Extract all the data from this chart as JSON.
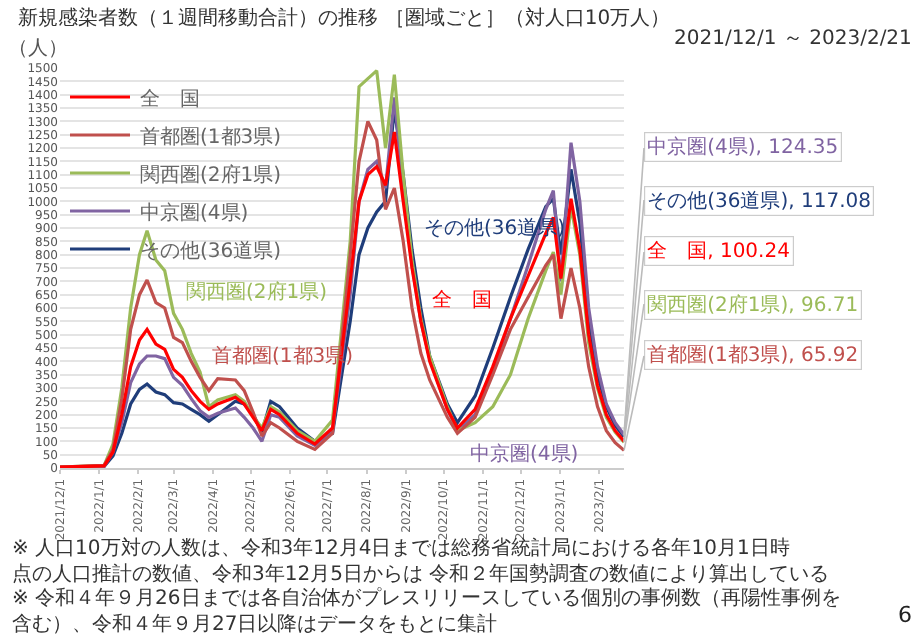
{
  "chart_data": {
    "type": "line",
    "title": "新規感染者数（１週間移動合計）の推移 ［圏域ごと］（対人口10万人）",
    "subtitle": "2021/12/1 ～ 2023/2/21",
    "ylabel": "（人）",
    "x": [
      "2021-12-01",
      "2022-01-05",
      "2022-01-12",
      "2022-01-19",
      "2022-01-26",
      "2022-02-02",
      "2022-02-08",
      "2022-02-15",
      "2022-02-22",
      "2022-03-01",
      "2022-03-08",
      "2022-03-15",
      "2022-03-22",
      "2022-03-29",
      "2022-04-05",
      "2022-04-19",
      "2022-04-26",
      "2022-05-03",
      "2022-05-10",
      "2022-05-17",
      "2022-05-24",
      "2022-06-07",
      "2022-06-21",
      "2022-07-05",
      "2022-07-19",
      "2022-07-26",
      "2022-08-02",
      "2022-08-09",
      "2022-08-16",
      "2022-08-23",
      "2022-08-30",
      "2022-09-06",
      "2022-09-13",
      "2022-09-20",
      "2022-10-04",
      "2022-10-12",
      "2022-10-26",
      "2022-11-09",
      "2022-11-23",
      "2022-12-07",
      "2022-12-21",
      "2022-12-27",
      "2023-01-02",
      "2023-01-10",
      "2023-01-17",
      "2023-01-24",
      "2023-01-31",
      "2023-02-07",
      "2023-02-14",
      "2023-02-21"
    ],
    "series": [
      {
        "name": "全　国",
        "color": "#ff0000",
        "values": [
          3,
          8,
          60,
          200,
          380,
          480,
          520,
          465,
          445,
          370,
          340,
          290,
          250,
          220,
          240,
          265,
          240,
          190,
          140,
          220,
          200,
          130,
          90,
          150,
          700,
          1000,
          1100,
          1130,
          1060,
          1260,
          1000,
          750,
          550,
          400,
          220,
          150,
          220,
          380,
          560,
          720,
          880,
          940,
          710,
          1010,
          820,
          500,
          310,
          200,
          140,
          100.24
        ]
      },
      {
        "name": "首都圏(1都3県)",
        "color": "#c0504d",
        "values": [
          3,
          10,
          70,
          260,
          520,
          650,
          705,
          620,
          600,
          490,
          470,
          400,
          340,
          290,
          335,
          330,
          290,
          210,
          120,
          170,
          150,
          100,
          70,
          130,
          800,
          1150,
          1300,
          1230,
          970,
          1050,
          850,
          600,
          430,
          330,
          190,
          130,
          190,
          350,
          520,
          640,
          760,
          800,
          560,
          750,
          600,
          380,
          230,
          140,
          95,
          65.92
        ]
      },
      {
        "name": "関西圏(2府1県)",
        "color": "#9bbb59",
        "values": [
          3,
          10,
          90,
          300,
          600,
          800,
          890,
          780,
          740,
          580,
          520,
          430,
          360,
          230,
          255,
          275,
          250,
          195,
          150,
          230,
          210,
          140,
          100,
          180,
          850,
          1430,
          1460,
          1490,
          1200,
          1475,
          1100,
          780,
          560,
          420,
          230,
          140,
          170,
          230,
          350,
          560,
          740,
          810,
          650,
          980,
          800,
          470,
          300,
          190,
          135,
          96.71
        ]
      },
      {
        "name": "中京圏(4県)",
        "color": "#8064a2",
        "values": [
          2,
          6,
          60,
          170,
          320,
          390,
          420,
          420,
          410,
          340,
          310,
          260,
          215,
          190,
          205,
          225,
          190,
          150,
          100,
          200,
          190,
          120,
          85,
          140,
          650,
          1000,
          1120,
          1150,
          1050,
          1390,
          1050,
          760,
          550,
          410,
          220,
          140,
          200,
          360,
          560,
          760,
          970,
          1040,
          700,
          1220,
          1000,
          600,
          380,
          240,
          170,
          124.35
        ]
      },
      {
        "name": "その他(36道県)",
        "color": "#1f3d7a",
        "values": [
          3,
          6,
          45,
          130,
          240,
          295,
          315,
          285,
          275,
          245,
          240,
          220,
          200,
          175,
          200,
          250,
          240,
          200,
          135,
          250,
          230,
          150,
          100,
          130,
          550,
          800,
          900,
          960,
          1000,
          1350,
          1100,
          820,
          600,
          420,
          240,
          170,
          270,
          450,
          640,
          820,
          980,
          1010,
          800,
          1120,
          920,
          560,
          350,
          230,
          160,
          117.08
        ]
      }
    ],
    "ylim": [
      0,
      1500
    ],
    "yticks": [
      0,
      50,
      100,
      150,
      200,
      250,
      300,
      350,
      400,
      450,
      500,
      550,
      600,
      650,
      700,
      750,
      800,
      850,
      900,
      950,
      1000,
      1050,
      1100,
      1150,
      1200,
      1250,
      1300,
      1350,
      1400,
      1450,
      1500
    ],
    "xlim": [
      "2021-12-01",
      "2023-02-21"
    ],
    "xticks": [
      {
        "value": "2021-12-01",
        "label": "2021/12/1"
      },
      {
        "value": "2022-01-01",
        "label": "2022/1/1"
      },
      {
        "value": "2022-02-01",
        "label": "2022/2/1"
      },
      {
        "value": "2022-03-01",
        "label": "2022/3/1"
      },
      {
        "value": "2022-04-01",
        "label": "2022/4/1"
      },
      {
        "value": "2022-05-01",
        "label": "2022/5/1"
      },
      {
        "value": "2022-06-01",
        "label": "2022/6/1"
      },
      {
        "value": "2022-07-01",
        "label": "2022/7/1"
      },
      {
        "value": "2022-08-01",
        "label": "2022/8/1"
      },
      {
        "value": "2022-09-01",
        "label": "2022/9/1"
      },
      {
        "value": "2022-10-01",
        "label": "2022/10/1"
      },
      {
        "value": "2022-11-01",
        "label": "2022/11/1"
      },
      {
        "value": "2022-12-01",
        "label": "2022/12/1"
      },
      {
        "value": "2023-01-01",
        "label": "2023/1/1"
      },
      {
        "value": "2023-02-01",
        "label": "2023/2/1"
      }
    ],
    "grid": "y",
    "legend": "top left",
    "marker": "none",
    "line_style": "solid",
    "annotations": [
      {
        "text": "関西圏(2府1県)",
        "x": "2022-03-01",
        "y": 580
      },
      {
        "text": "首都圏(1都3県)",
        "x": "2022-03-22",
        "y": 340
      },
      {
        "text": "その他(36道県)",
        "x": "2022-09-06",
        "y": 820
      },
      {
        "text": "全　国",
        "x": "2022-09-13",
        "y": 550
      },
      {
        "text": "中京圏(4県)",
        "x": "2022-10-12",
        "y": 140
      },
      {
        "text": "中京圏(4県), 124.35",
        "x": "2023-02-21",
        "y": 124.35
      },
      {
        "text": "その他(36道県), 117.08",
        "x": "2023-02-21",
        "y": 117.08
      },
      {
        "text": "全　国, 100.24",
        "x": "2023-02-21",
        "y": 100.24
      },
      {
        "text": "関西圏(2府1県), 96.71",
        "x": "2023-02-21",
        "y": 96.71
      },
      {
        "text": "首都圏(1都3県), 65.92",
        "x": "2023-02-21",
        "y": 65.92
      },
      "※ 人口10万対の人数は、令和3年12月4日までは総務省統計局における各年10月1日時点の人口推計の数値、令和3年12月5日からは 令和２年国勢調査の数値により算出している",
      "※ 令和４年９月26日までは各自治体がプレスリリースしている個別の事例数（再陽性事例を含む）、令和４年９月27日以降はデータをもとに集計",
      "6"
    ]
  }
}
